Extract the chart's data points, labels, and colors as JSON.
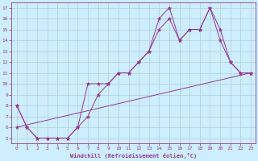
{
  "xlabel": "Windchill (Refroidissement éolien,°C)",
  "line_color": "#993399",
  "bg_color": "#cceeff",
  "grid_color": "#b0ccd8",
  "xlim": [
    -0.5,
    23.5
  ],
  "ylim": [
    4.5,
    17.5
  ],
  "xticks": [
    0,
    1,
    2,
    3,
    4,
    5,
    6,
    7,
    8,
    9,
    10,
    11,
    12,
    13,
    14,
    15,
    16,
    17,
    18,
    19,
    20,
    21,
    22,
    23
  ],
  "yticks": [
    5,
    6,
    7,
    8,
    9,
    10,
    11,
    12,
    13,
    14,
    15,
    16,
    17
  ],
  "lines": [
    {
      "x": [
        0,
        1,
        2,
        3,
        4,
        5,
        6,
        7,
        8,
        9,
        10,
        11,
        12,
        13,
        14,
        15,
        16,
        17,
        18,
        19,
        20,
        21,
        22,
        23
      ],
      "y": [
        8,
        6,
        5,
        5,
        5,
        5,
        6,
        10,
        10,
        10,
        11,
        11,
        12,
        13,
        16,
        17,
        14,
        15,
        15,
        17,
        14,
        12,
        11,
        11
      ]
    },
    {
      "x": [
        0,
        1,
        2,
        3,
        4,
        5,
        6,
        7,
        8,
        9,
        10,
        11,
        12,
        13,
        14,
        15,
        16,
        17,
        18,
        19,
        20,
        21,
        22,
        23
      ],
      "y": [
        8,
        6,
        5,
        5,
        5,
        5,
        6,
        7,
        9,
        10,
        11,
        11,
        12,
        13,
        15,
        16,
        14,
        15,
        15,
        17,
        15,
        12,
        11,
        11
      ]
    },
    {
      "x": [
        0,
        23
      ],
      "y": [
        6,
        11
      ]
    }
  ]
}
